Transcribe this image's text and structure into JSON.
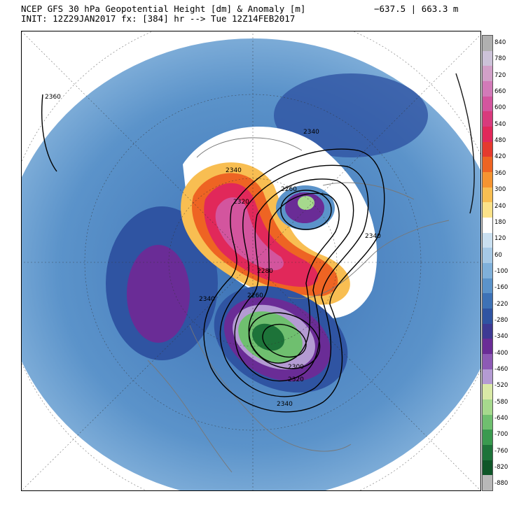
{
  "header": {
    "title_line1": "NCEP GFS 30 hPa Geopotential Height [dm] & Anomaly [m]",
    "title_line2": "INIT: 12Z29JAN2017 fx: [384] hr --> Tue 12Z14FEB2017",
    "range_text": "−637.5 | 663.3 m"
  },
  "map": {
    "contour_labels": [
      "2360",
      "2340",
      "2340",
      "2320",
      "2260",
      "2340",
      "2280",
      "2340",
      "2260",
      "2300",
      "2320",
      "2340"
    ]
  },
  "colorbar": {
    "labels": [
      "840",
      "780",
      "720",
      "660",
      "600",
      "540",
      "480",
      "420",
      "360",
      "300",
      "240",
      "180",
      "120",
      "60",
      "-100",
      "-160",
      "-220",
      "-280",
      "-340",
      "-400",
      "-460",
      "-520",
      "-580",
      "-640",
      "-700",
      "-760",
      "-820",
      "-880"
    ],
    "colors": [
      "#b0b0b0",
      "#ccc2d8",
      "#d2a0c8",
      "#d27ab8",
      "#d3559e",
      "#d83a7c",
      "#e1285a",
      "#e53a2e",
      "#ee6423",
      "#f59431",
      "#f8be52",
      "#fbe289",
      "#ffffff",
      "#c9dff0",
      "#a6c9e6",
      "#7fb0da",
      "#5b93ca",
      "#3d72b6",
      "#2f54a2",
      "#3e3a94",
      "#6a2c96",
      "#8d5ab5",
      "#b49bd3",
      "#d9e9a6",
      "#a6d98d",
      "#6fbf6f",
      "#3a9a4f",
      "#1d7339",
      "#0f5628",
      "#b8b8b8"
    ]
  }
}
